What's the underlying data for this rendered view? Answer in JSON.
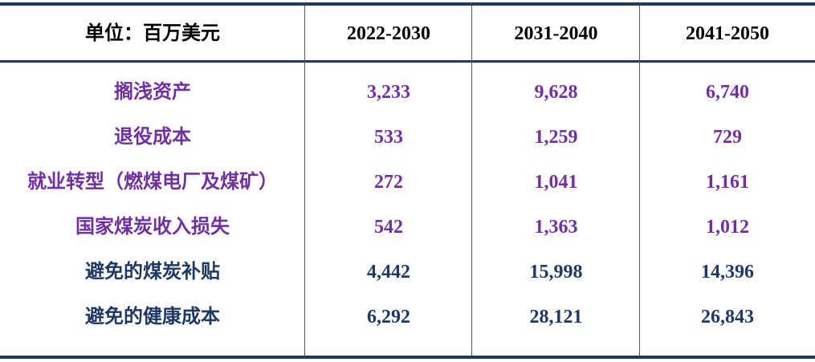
{
  "table": {
    "header": [
      "单位：百万美元",
      "2022-2030",
      "2031-2040",
      "2041-2050"
    ],
    "rows": [
      [
        "搁浅资产",
        "3,233",
        "9,628",
        "6,740"
      ],
      [
        "退役成本",
        "533",
        "1,259",
        "729"
      ],
      [
        "就业转型（燃煤电厂及煤矿）",
        "272",
        "1,041",
        "1,161"
      ],
      [
        "国家煤炭收入损失",
        "542",
        "1,363",
        "1,012"
      ],
      [
        "避免的煤炭补贴",
        "4,442",
        "15,998",
        "14,396"
      ],
      [
        "避免的健康成本",
        "6,292",
        "28,121",
        "26,843"
      ]
    ]
  }
}
